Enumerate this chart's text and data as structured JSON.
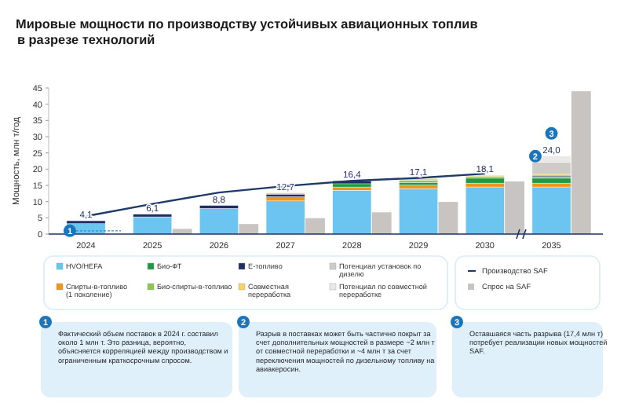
{
  "chart_data": [
    {
      "type": "bar",
      "stacked": true,
      "title": "Мировые мощности по производству устойчивых авиационных топлив",
      "subtitle": "в разрезе технологий",
      "ylabel": "Мощность, млн т/год",
      "categories": [
        "2024",
        "2025",
        "2026",
        "2027",
        "2028",
        "2029",
        "2030",
        "2035"
      ],
      "ylim": [
        0,
        45
      ],
      "yticks": [
        0,
        5,
        10,
        15,
        20,
        25,
        30,
        35,
        40,
        45
      ],
      "legend": "bottom",
      "totals": [
        "4,1",
        "6,1",
        "8,8",
        "12,7",
        "16,4",
        "17,1",
        "18,1",
        "24,0"
      ],
      "series": [
        {
          "name": "HVO/HEFA",
          "color": "#6cc5f0",
          "values": [
            3.2,
            5.3,
            7.9,
            10.2,
            13.5,
            14.0,
            14.5,
            14.5
          ]
        },
        {
          "name": "Спирты-в-топливо (1 поколение)",
          "color": "#f0961e",
          "values": [
            0,
            0,
            0,
            1.3,
            1.0,
            1.1,
            1.2,
            1.2
          ]
        },
        {
          "name": "Био-ФТ",
          "color": "#1e9a46",
          "values": [
            0,
            0,
            0,
            0,
            1.0,
            0.8,
            1.5,
            1.5
          ]
        },
        {
          "name": "Био-спирты-в-топливо",
          "color": "#8cc850",
          "values": [
            0,
            0,
            0,
            0,
            0,
            0.7,
            0.5,
            0.5
          ]
        },
        {
          "name": "Е-топливо",
          "color": "#1f2f66",
          "values": [
            0.9,
            0.8,
            0.9,
            0.8,
            0.9,
            0,
            0,
            0.4
          ]
        },
        {
          "name": "Совместная переработка",
          "color": "#f7d36b",
          "values": [
            0,
            0,
            0,
            0.4,
            0,
            0.5,
            0.4,
            0.3
          ]
        },
        {
          "name": "Потенциал установок по дизелю",
          "color": "#cfcbc8",
          "values": [
            0,
            0,
            0,
            0,
            0,
            0,
            0,
            3.7
          ]
        },
        {
          "name": "Потенциал по совместной переработке",
          "color": "#ebe9e7",
          "values": [
            0,
            0,
            0,
            0,
            0,
            0,
            0,
            1.9
          ]
        },
        {
          "name": "Производство SAF",
          "type": "line",
          "color": "#1f3a68",
          "values": [
            5.5,
            9.3,
            12.8,
            14.8,
            16.4,
            17.3,
            18.6,
            null
          ]
        }
      ],
      "annotations": [
        {
          "text": "1",
          "x": "2024",
          "y": 1
        },
        {
          "text": "2",
          "x": "2035",
          "y": 24
        },
        {
          "text": "3",
          "x": "2035",
          "y": 31
        },
        "Фактический объем поставок в 2024 г. составил около 1 млн т. Это разница, вероятно, объясняется корреляцией между производством и ограниченным краткосрочным спросом.",
        "Разрыв в поставках может быть частично покрыт за счет дополнительных мощностей в размере ~2 млн т от совместной переработки и ~4 млн т за счет переключения мощностей по дизельному топливу на авиакеросин.",
        "Оставшаяся часть разрыва (17,4 млн т) потребует реализации новых мощностей SAF."
      ]
    },
    {
      "type": "bar",
      "categories": [
        null,
        null,
        null,
        null,
        null,
        null,
        null,
        null
      ],
      "ylim": [
        0,
        45
      ],
      "tick_labels": false,
      "legend": "bottom",
      "series": [
        {
          "name": "Спрос на SAF",
          "color": "#c8c4c1",
          "values": [
            null,
            1.6,
            3.1,
            4.9,
            6.7,
            9.9,
            16.2,
            44
          ]
        }
      ]
    }
  ]
}
